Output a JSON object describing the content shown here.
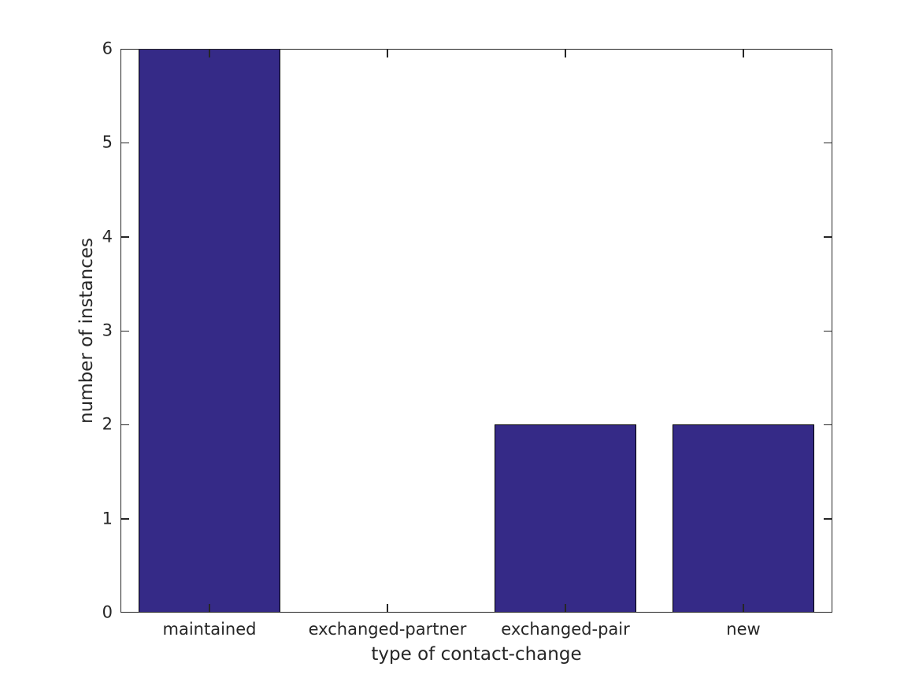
{
  "chart_data": {
    "type": "bar",
    "categories": [
      "maintained",
      "exchanged-partner",
      "exchanged-pair",
      "new"
    ],
    "values": [
      6,
      0,
      2,
      2
    ],
    "title": "",
    "xlabel": "type of contact-change",
    "ylabel": "number of instances",
    "ylim": [
      0,
      6
    ],
    "yticks": [
      0,
      1,
      2,
      3,
      4,
      5,
      6
    ],
    "ytick_labels": [
      "0",
      "1",
      "2",
      "3",
      "4",
      "5",
      "6"
    ],
    "bar_width_fraction": 0.8,
    "grid": false,
    "legend": null,
    "box": true,
    "tick_direction": "in",
    "colors": {
      "bar_fill": "#352a87",
      "bar_edge": "#000000",
      "axis": "#262626",
      "text": "#262626",
      "background": "#ffffff"
    }
  }
}
